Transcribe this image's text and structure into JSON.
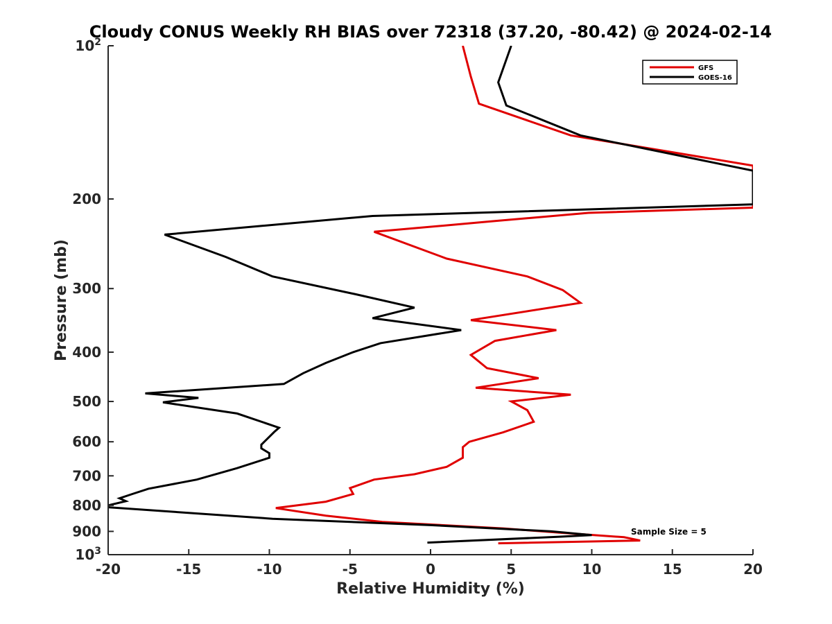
{
  "chart_data": {
    "type": "line",
    "title": "Cloudy CONUS Weekly RH BIAS over 72318 (37.20, -80.42) @ 2024-02-14",
    "xlabel": "Relative Humidity (%)",
    "ylabel": "Pressure (mb)",
    "xlim": [
      -20,
      20
    ],
    "ylim": [
      100,
      1000
    ],
    "yscale": "log",
    "yreversed": true,
    "x_ticks": [
      -20,
      -15,
      -10,
      -5,
      0,
      5,
      10,
      15,
      20
    ],
    "x_tick_labels": [
      "-20",
      "-15",
      "-10",
      "-5",
      "0",
      "5",
      "10",
      "15",
      "20"
    ],
    "y_ticks": [
      100,
      200,
      300,
      400,
      500,
      600,
      700,
      800,
      900,
      1000
    ],
    "y_tick_labels": [
      {
        "base": "10",
        "exp": "2"
      },
      {
        "base": "200",
        "exp": ""
      },
      {
        "base": "300",
        "exp": ""
      },
      {
        "base": "400",
        "exp": ""
      },
      {
        "base": "500",
        "exp": ""
      },
      {
        "base": "600",
        "exp": ""
      },
      {
        "base": "700",
        "exp": ""
      },
      {
        "base": "800",
        "exp": ""
      },
      {
        "base": "900",
        "exp": ""
      },
      {
        "base": "10",
        "exp": "3"
      }
    ],
    "legend_position": "top-right",
    "annotation": "Sample Size = 5",
    "series": [
      {
        "name": "GFS",
        "color": "#e00000",
        "points": [
          [
            2.0,
            100
          ],
          [
            2.5,
            115
          ],
          [
            3.0,
            130
          ],
          [
            8.7,
            150
          ],
          [
            20.0,
            172
          ],
          [
            20.0,
            208
          ],
          [
            9.8,
            213
          ],
          [
            4.0,
            221
          ],
          [
            -3.5,
            232
          ],
          [
            1.0,
            262
          ],
          [
            6.0,
            284
          ],
          [
            8.2,
            302
          ],
          [
            9.3,
            320
          ],
          [
            2.5,
            346
          ],
          [
            7.8,
            362
          ],
          [
            4.0,
            380
          ],
          [
            2.5,
            405
          ],
          [
            3.5,
            430
          ],
          [
            6.7,
            450
          ],
          [
            2.8,
            470
          ],
          [
            8.7,
            485
          ],
          [
            5.0,
            500
          ],
          [
            6.0,
            520
          ],
          [
            6.4,
            548
          ],
          [
            4.5,
            575
          ],
          [
            2.4,
            600
          ],
          [
            2.0,
            615
          ],
          [
            2.0,
            645
          ],
          [
            1.0,
            672
          ],
          [
            -1.0,
            695
          ],
          [
            -3.5,
            712
          ],
          [
            -5.0,
            740
          ],
          [
            -4.8,
            760
          ],
          [
            -6.5,
            787
          ],
          [
            -9.6,
            810
          ],
          [
            -6.5,
            838
          ],
          [
            -3.0,
            862
          ],
          [
            4.5,
            888
          ],
          [
            8.0,
            905
          ],
          [
            12.0,
            924
          ],
          [
            13.0,
            938
          ],
          [
            4.2,
            950
          ]
        ]
      },
      {
        "name": "GOES-16",
        "color": "#000000",
        "points": [
          [
            5.0,
            100
          ],
          [
            4.2,
            118
          ],
          [
            4.7,
            131
          ],
          [
            9.3,
            150
          ],
          [
            20.0,
            176
          ],
          [
            20.0,
            205
          ],
          [
            -3.6,
            216
          ],
          [
            -16.5,
            235
          ],
          [
            -12.7,
            260
          ],
          [
            -9.8,
            284
          ],
          [
            -4.6,
            308
          ],
          [
            -1.0,
            327
          ],
          [
            -3.6,
            343
          ],
          [
            1.9,
            362
          ],
          [
            -3.1,
            384
          ],
          [
            -4.8,
            400
          ],
          [
            -6.5,
            420
          ],
          [
            -7.9,
            440
          ],
          [
            -9.1,
            462
          ],
          [
            -17.7,
            482
          ],
          [
            -14.4,
            492
          ],
          [
            -16.6,
            502
          ],
          [
            -12.0,
            528
          ],
          [
            -9.4,
            563
          ],
          [
            -9.7,
            574
          ],
          [
            -10.5,
            608
          ],
          [
            -10.5,
            618
          ],
          [
            -10.0,
            632
          ],
          [
            -10.0,
            645
          ],
          [
            -12.0,
            676
          ],
          [
            -14.5,
            712
          ],
          [
            -17.5,
            742
          ],
          [
            -18.5,
            760
          ],
          [
            -19.3,
            775
          ],
          [
            -18.9,
            785
          ],
          [
            -20.0,
            800
          ],
          [
            -20.0,
            807
          ],
          [
            -9.8,
            850
          ],
          [
            0.0,
            875
          ],
          [
            7.5,
            900
          ],
          [
            10.0,
            915
          ],
          [
            8.0,
            922
          ],
          [
            -0.2,
            947
          ]
        ]
      }
    ]
  }
}
